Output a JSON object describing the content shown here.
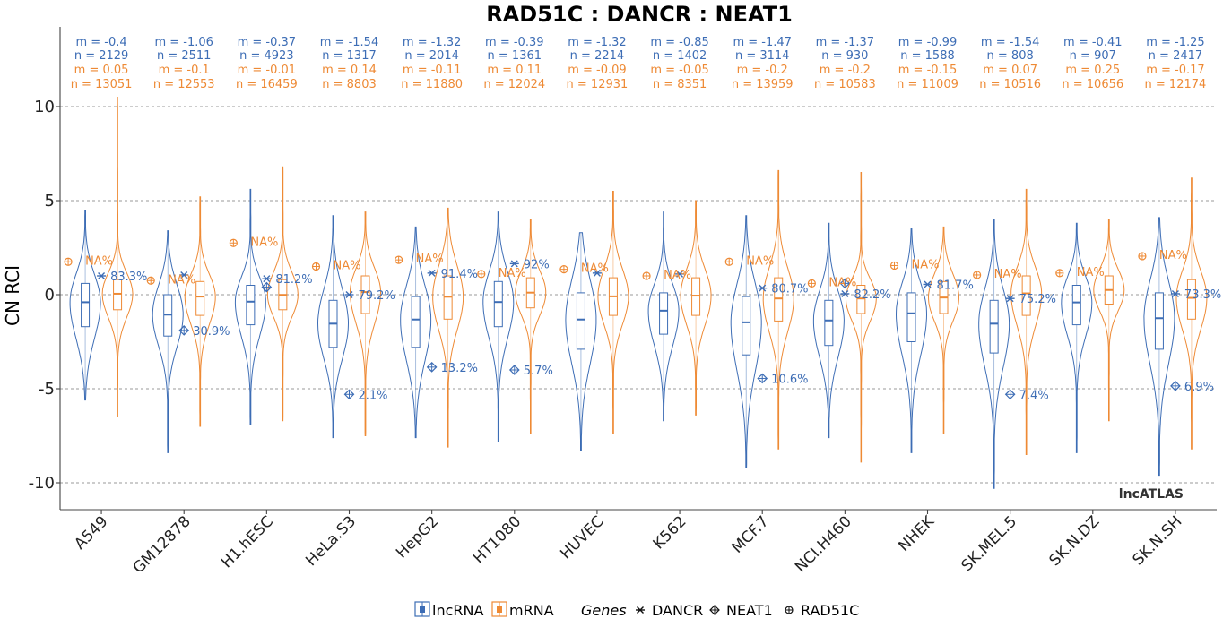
{
  "chart_data": {
    "type": "violin",
    "title": "RAD51C : DANCR : NEAT1",
    "ylabel": "CN RCI",
    "xlabel": "",
    "ylim": [
      -11.5,
      14
    ],
    "yticks": [
      10,
      5,
      0,
      -5,
      -10
    ],
    "ytick_labels": [
      "10",
      "5",
      "0",
      "-5",
      "-10"
    ],
    "grid": true,
    "watermark": "lncATLAS",
    "colors": {
      "lncRNA": "#3d6db5",
      "mRNA": "#ee8a35"
    },
    "categories": [
      "A549",
      "GM12878",
      "H1.hESC",
      "HeLa.S3",
      "HepG2",
      "HT1080",
      "HUVEC",
      "K562",
      "MCF.7",
      "NCI.H460",
      "NHEK",
      "SK.MEL.5",
      "SK.N.DZ",
      "SK.N.SH"
    ],
    "series": [
      {
        "name": "lncRNA",
        "m_labels": [
          "m = -0.4",
          "m = -1.06",
          "m = -0.37",
          "m = -1.54",
          "m = -1.32",
          "m = -0.39",
          "m = -1.32",
          "m = -0.85",
          "m = -1.47",
          "m = -1.37",
          "m = -0.99",
          "m = -1.54",
          "m = -0.41",
          "m = -1.25"
        ],
        "n_labels": [
          "n = 2129",
          "n = 2511",
          "n = 4923",
          "n = 1317",
          "n = 2014",
          "n = 1361",
          "n = 2214",
          "n = 1402",
          "n = 3114",
          "n = 930",
          "n = 1588",
          "n = 808",
          "n = 907",
          "n = 2417"
        ],
        "median": [
          -0.4,
          -1.06,
          -0.37,
          -1.54,
          -1.32,
          -0.39,
          -1.32,
          -0.85,
          -1.47,
          -1.37,
          -0.99,
          -1.54,
          -0.41,
          -1.25
        ],
        "q1": [
          -1.7,
          -2.2,
          -1.6,
          -2.8,
          -2.8,
          -1.7,
          -2.9,
          -2.1,
          -3.2,
          -2.7,
          -2.5,
          -3.1,
          -1.6,
          -2.9
        ],
        "q3": [
          0.6,
          0.0,
          0.5,
          -0.3,
          -0.1,
          0.7,
          0.1,
          0.1,
          -0.1,
          -0.3,
          0.1,
          -0.3,
          0.5,
          0.1
        ],
        "min": [
          -5.6,
          -8.4,
          -6.9,
          -7.6,
          -7.6,
          -7.8,
          -8.3,
          -6.7,
          -9.2,
          -7.6,
          -8.4,
          -10.3,
          -8.4,
          -9.6
        ],
        "max": [
          4.5,
          3.4,
          5.6,
          4.2,
          3.6,
          4.4,
          3.3,
          4.4,
          4.2,
          3.8,
          3.5,
          4.0,
          3.8,
          4.1
        ]
      },
      {
        "name": "mRNA",
        "m_labels": [
          "m = 0.05",
          "m = -0.1",
          "m = -0.01",
          "m = 0.14",
          "m = -0.11",
          "m = 0.11",
          "m = -0.09",
          "m = -0.05",
          "m = -0.2",
          "m = -0.2",
          "m = -0.15",
          "m = 0.07",
          "m = 0.25",
          "m = -0.17"
        ],
        "n_labels": [
          "n = 13051",
          "n = 12553",
          "n = 16459",
          "n = 8803",
          "n = 11880",
          "n = 12024",
          "n = 12931",
          "n = 8351",
          "n = 13959",
          "n = 10583",
          "n = 11009",
          "n = 10516",
          "n = 10656",
          "n = 12174"
        ],
        "median": [
          0.05,
          -0.1,
          -0.01,
          0.14,
          -0.11,
          0.11,
          -0.09,
          -0.05,
          -0.2,
          -0.2,
          -0.15,
          0.07,
          0.25,
          -0.17
        ],
        "q1": [
          -0.8,
          -1.1,
          -0.8,
          -1.0,
          -1.3,
          -0.7,
          -1.1,
          -1.1,
          -1.4,
          -1.0,
          -1.0,
          -1.1,
          -0.5,
          -1.3
        ],
        "q3": [
          0.8,
          0.7,
          0.8,
          1.0,
          1.0,
          0.9,
          0.9,
          0.9,
          0.9,
          0.5,
          0.7,
          1.0,
          1.0,
          0.8
        ],
        "min": [
          -6.5,
          -7.0,
          -6.7,
          -7.5,
          -8.1,
          -7.4,
          -7.4,
          -6.4,
          -8.2,
          -8.9,
          -7.4,
          -8.5,
          -6.7,
          -8.2
        ],
        "max": [
          10.5,
          5.2,
          6.8,
          4.4,
          4.6,
          4.0,
          5.5,
          5.0,
          6.6,
          6.5,
          3.6,
          5.6,
          4.0,
          6.2
        ]
      }
    ],
    "genes": [
      {
        "name": "DANCR",
        "marker": "asterisk",
        "values": [
          1.0,
          1.05,
          0.85,
          0.0,
          1.15,
          1.65,
          1.15,
          1.1,
          0.35,
          0.05,
          0.55,
          -0.2,
          null,
          0.05
        ],
        "percent_labels": [
          "83.3%",
          "",
          "81.2%",
          "79.2%",
          "91.4%",
          "92%",
          "",
          "",
          "80.7%",
          "82.2%",
          "81.7%",
          "75.2%",
          "",
          "73.3%"
        ]
      },
      {
        "name": "NEAT1",
        "marker": "crossed-diamond",
        "values": [
          null,
          -1.9,
          0.4,
          -5.3,
          -3.85,
          -4.0,
          null,
          null,
          -4.45,
          0.6,
          null,
          -5.3,
          null,
          -4.85
        ],
        "percent_labels": [
          "",
          "30.9%",
          "",
          "2.1%",
          "13.2%",
          "5.7%",
          "",
          "",
          "10.6%",
          "",
          "",
          "7.4%",
          "",
          "6.9%"
        ]
      },
      {
        "name": "RAD51C",
        "marker": "crossed-circle",
        "values": [
          1.75,
          0.75,
          2.75,
          1.5,
          1.85,
          1.1,
          1.35,
          1.0,
          1.75,
          0.6,
          1.55,
          1.05,
          1.15,
          2.05
        ],
        "percent_labels": [
          "NA%",
          "NA%",
          "NA%",
          "NA%",
          "NA%",
          "NA%",
          "NA%",
          "NA%",
          "NA%",
          "NA%",
          "NA%",
          "NA%",
          "NA%",
          "NA%"
        ]
      }
    ],
    "legend": {
      "items": [
        "lncRNA",
        "mRNA"
      ],
      "genes_title": "Genes",
      "genes": [
        "DANCR",
        "NEAT1",
        "RAD51C"
      ],
      "placement": "bottom"
    }
  }
}
